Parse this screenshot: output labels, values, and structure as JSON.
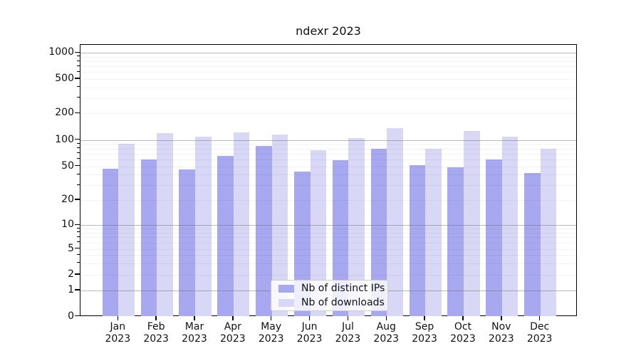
{
  "figure": {
    "background": "#ffffff",
    "text_color": "#111111"
  },
  "chart_data": {
    "type": "bar",
    "title": "ndexr 2023",
    "categories": [
      "Jan 2023",
      "Feb 2023",
      "Mar 2023",
      "Apr 2023",
      "May 2023",
      "Jun 2023",
      "Jul 2023",
      "Aug 2023",
      "Sep 2023",
      "Oct 2023",
      "Nov 2023",
      "Dec 2023"
    ],
    "series": [
      {
        "name": "Nb of distinct IPs",
        "color": "#a8a8f0",
        "values": [
          47,
          60,
          46,
          66,
          86,
          43,
          59,
          80,
          52,
          49,
          60,
          42
        ]
      },
      {
        "name": "Nb of downloads",
        "color": "#d8d8f6",
        "values": [
          90,
          119,
          110,
          122,
          116,
          76,
          105,
          136,
          79,
          126,
          109,
          79
        ]
      }
    ],
    "xlabel": "",
    "ylabel": "",
    "yscale": "symlog",
    "ylim": [
      0,
      1240
    ],
    "y_ticks": [
      0,
      1,
      2,
      5,
      10,
      20,
      50,
      100,
      200,
      500,
      1000
    ],
    "y_tick_labels": [
      "0",
      "1",
      "2",
      "5",
      "10",
      "20",
      "50",
      "100",
      "200",
      "500",
      "1000"
    ],
    "y_minor_gridlines": [
      3,
      4,
      6,
      7,
      8,
      9,
      30,
      40,
      60,
      70,
      80,
      90,
      300,
      400,
      600,
      700,
      800,
      900
    ],
    "grid": "horizontal",
    "gridline_major_color": "#c2c2c2",
    "gridline_minor_color": "#f0f0f0",
    "legend": {
      "position": "inside-bottom-center"
    }
  }
}
